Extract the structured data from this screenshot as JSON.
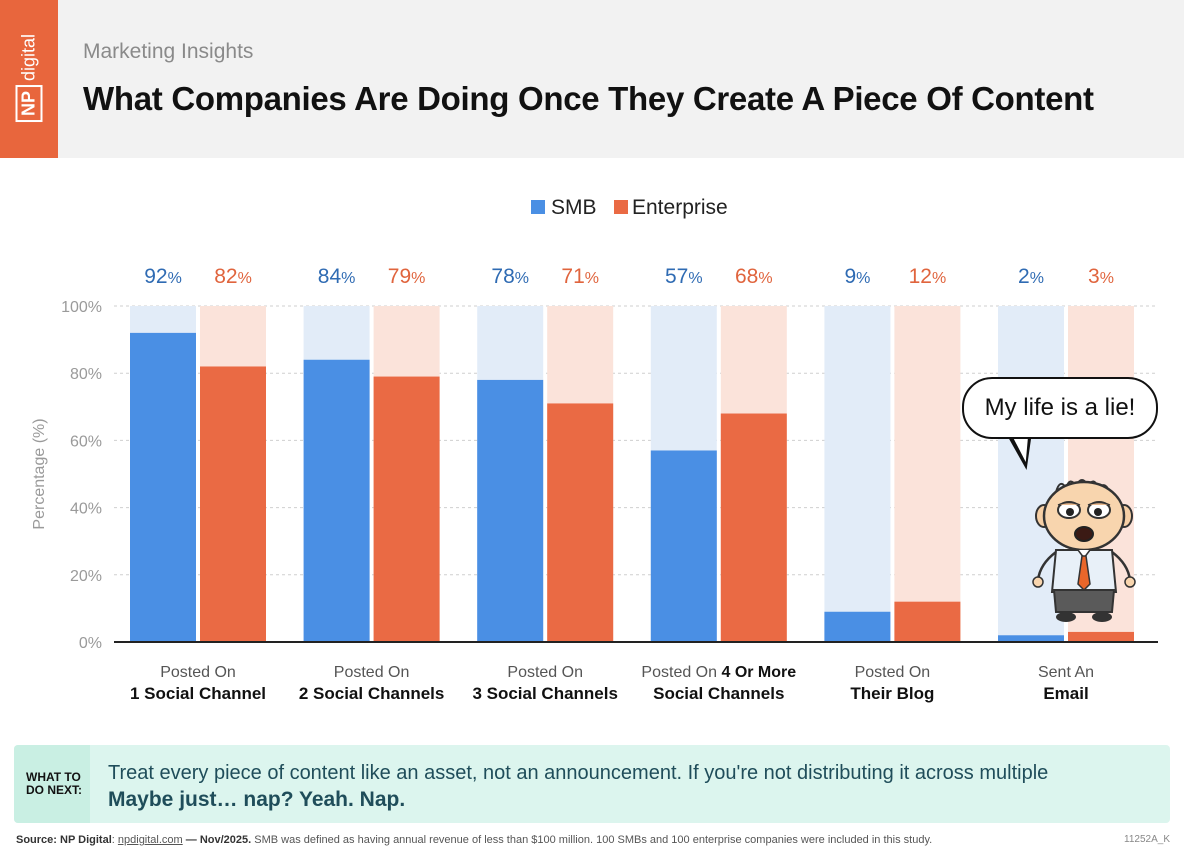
{
  "header": {
    "logo_np": "NP",
    "logo_word": "digital",
    "eyebrow": "Marketing Insights",
    "title": "What Companies Are Doing Once They Create A Piece Of Content"
  },
  "colors": {
    "smb": "#4a8fe4",
    "smb_light": "#e2ecf8",
    "smb_label": "#2f6bb3",
    "enterprise": "#ea6a44",
    "enterprise_light": "#fbe3da",
    "enterprise_label": "#e0643d",
    "grid": "#cfcfcf",
    "axis_text": "#9a9a9a"
  },
  "chart_data": {
    "type": "bar",
    "ylabel": "Percentage (%)",
    "ylim": [
      0,
      100
    ],
    "yticks": [
      0,
      20,
      40,
      60,
      80,
      100
    ],
    "ytick_labels": [
      "0%",
      "20%",
      "40%",
      "60%",
      "80%",
      "100%"
    ],
    "grid": true,
    "legend_position": "top-center",
    "categories": [
      {
        "line1": "Posted On",
        "line1_bold": "",
        "line2": "1 Social Channel"
      },
      {
        "line1": "Posted On",
        "line1_bold": "",
        "line2": "2 Social Channels"
      },
      {
        "line1": "Posted On",
        "line1_bold": "",
        "line2": "3 Social Channels"
      },
      {
        "line1": "Posted On ",
        "line1_bold": "4 Or More",
        "line2": "Social Channels"
      },
      {
        "line1": "Posted On",
        "line1_bold": "",
        "line2": "Their Blog"
      },
      {
        "line1": "Sent An",
        "line1_bold": "",
        "line2": "Email"
      }
    ],
    "series": [
      {
        "name": "SMB",
        "values": [
          92,
          84,
          78,
          57,
          9,
          2
        ]
      },
      {
        "name": "Enterprise",
        "values": [
          82,
          79,
          71,
          68,
          12,
          3
        ]
      }
    ]
  },
  "comic": {
    "speech": "My life is a lie!"
  },
  "callout": {
    "label": "WHAT TO DO NEXT:",
    "line1": "Treat every piece of content like an asset, not an announcement. If you're not distributing it across multiple",
    "line2": "Maybe just… nap? Yeah. Nap."
  },
  "footer": {
    "source_bold": "Source: NP Digital",
    "source_link": "npdigital.com",
    "source_date": "— Nov/2025.",
    "source_rest": "SMB was defined as having annual revenue of less than $100 million. 100 SMBs and 100 enterprise companies were included in this study.",
    "code": "11252A_K"
  }
}
